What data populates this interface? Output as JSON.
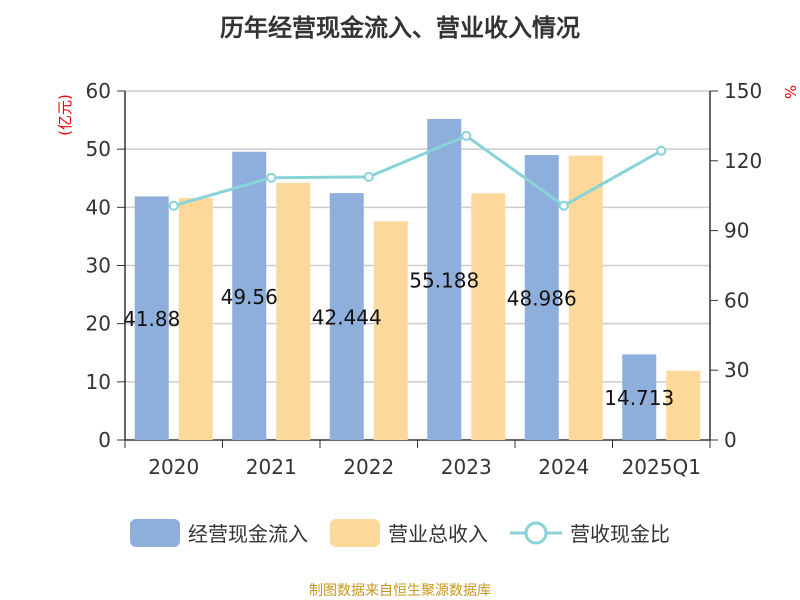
{
  "chart_data": {
    "type": "bar",
    "title": "历年经营现金流入、营业收入情况",
    "categories": [
      "2020",
      "2021",
      "2022",
      "2023",
      "2024",
      "2025Q1"
    ],
    "series": [
      {
        "name": "经营现金流入",
        "type": "bar",
        "axis": "left",
        "color": "#8eaedb",
        "values": [
          41.88,
          49.56,
          42.444,
          55.188,
          48.986,
          14.713
        ],
        "labels": [
          "41.88",
          "49.56",
          "42.444",
          "55.188",
          "48.986",
          "14.713"
        ]
      },
      {
        "name": "营业总收入",
        "type": "bar",
        "axis": "left",
        "color": "#fdd89b",
        "values": [
          41.6,
          44.2,
          37.6,
          42.4,
          48.9,
          11.9
        ]
      },
      {
        "name": "营收现金比",
        "type": "line",
        "axis": "right",
        "color": "#88d3d8",
        "values": [
          100.7,
          112.7,
          113.1,
          130.7,
          100.7,
          124.3
        ]
      }
    ],
    "ylabel": "(亿元)",
    "y2label": "%",
    "ylim": [
      0,
      60
    ],
    "yticks": [
      0,
      10,
      20,
      30,
      40,
      50,
      60
    ],
    "y2lim": [
      0,
      150
    ],
    "y2ticks": [
      0,
      30,
      60,
      90,
      120,
      150
    ],
    "grid": true,
    "legend": "bottom"
  },
  "source": "制图数据来自恒生聚源数据库"
}
